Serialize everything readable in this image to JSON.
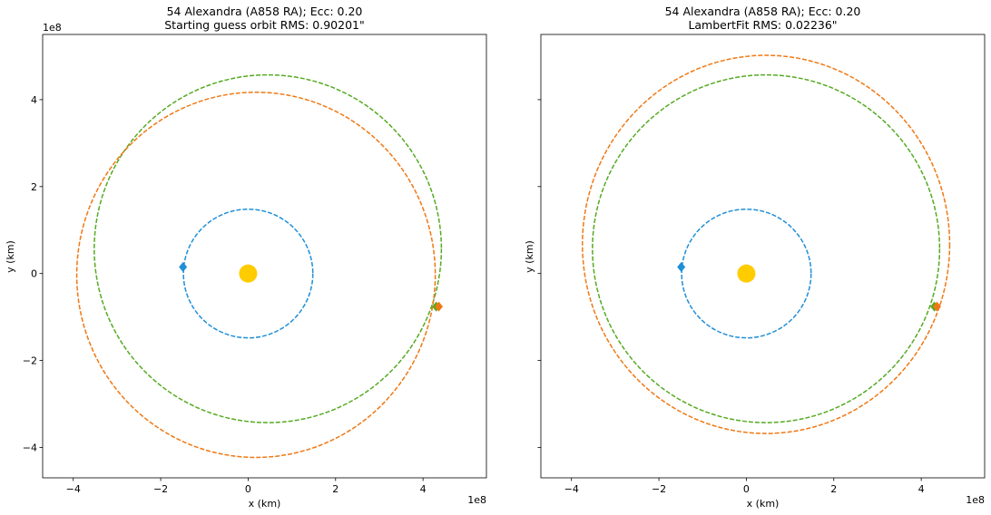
{
  "figure": {
    "background": "#ffffff",
    "colors": {
      "sun": "#FFCC00",
      "earth": "#1F8FD6",
      "fitted": "#F07814",
      "asteroid": "#55AA22"
    }
  },
  "chart_data": [
    {
      "type": "scatter",
      "title": "54 Alexandra (A858 RA); Ecc: 0.20",
      "subtitle": "Starting guess orbit RMS: 0.90201\"",
      "xlabel": "x (km)",
      "ylabel": "y (km)",
      "x_offset_label": "1e8",
      "y_offset_label": "1e8",
      "xlim": [
        -4.7,
        5.45
      ],
      "ylim": [
        -4.7,
        5.5
      ],
      "xticks": [
        -4,
        -2,
        0,
        2,
        4
      ],
      "yticks": [
        -4,
        -2,
        0,
        2,
        4
      ],
      "xtick_labels": [
        "−4",
        "−2",
        "0",
        "2",
        "4"
      ],
      "ytick_labels": [
        "−4",
        "−2",
        "0",
        "2",
        "4"
      ],
      "show_ytick_labels": true,
      "grid": false,
      "series": [
        {
          "kind": "orbit",
          "style": "dashed",
          "color_key": "earth",
          "cx": 0.0,
          "cy": 0.0,
          "rx": 1.48,
          "ry": 1.48
        },
        {
          "kind": "orbit",
          "style": "dashed",
          "color_key": "asteroid",
          "cx": 0.45,
          "cy": 0.57,
          "rx": 3.97,
          "ry": 4.0
        },
        {
          "kind": "orbit",
          "style": "dashed",
          "color_key": "fitted",
          "cx": 0.18,
          "cy": -0.03,
          "rx": 4.1,
          "ry": 4.2
        },
        {
          "kind": "sun",
          "color_key": "sun",
          "x": 0.0,
          "y": 0.0
        },
        {
          "kind": "marker",
          "color_key": "earth",
          "x": -1.49,
          "y": 0.15
        },
        {
          "kind": "marker",
          "color_key": "asteroid",
          "x": 4.3,
          "y": -0.76
        },
        {
          "kind": "marker",
          "color_key": "fitted",
          "x": 4.36,
          "y": -0.76
        }
      ]
    },
    {
      "type": "scatter",
      "title": "54 Alexandra (A858 RA); Ecc: 0.20",
      "subtitle": "LambertFit RMS: 0.02236\"",
      "xlabel": "x (km)",
      "ylabel": "y (km)",
      "x_offset_label": "1e8",
      "y_offset_label": "",
      "xlim": [
        -4.7,
        5.45
      ],
      "ylim": [
        -4.7,
        5.5
      ],
      "xticks": [
        -4,
        -2,
        0,
        2,
        4
      ],
      "yticks": [
        -4,
        -2,
        0,
        2,
        4
      ],
      "xtick_labels": [
        "−4",
        "−2",
        "0",
        "2",
        "4"
      ],
      "ytick_labels": [
        "−4",
        "−2",
        "0",
        "2",
        "4"
      ],
      "show_ytick_labels": false,
      "grid": false,
      "series": [
        {
          "kind": "orbit",
          "style": "dashed",
          "color_key": "earth",
          "cx": 0.0,
          "cy": 0.0,
          "rx": 1.48,
          "ry": 1.48
        },
        {
          "kind": "orbit",
          "style": "dashed",
          "color_key": "asteroid",
          "cx": 0.45,
          "cy": 0.57,
          "rx": 3.97,
          "ry": 4.0
        },
        {
          "kind": "orbit",
          "style": "dashed",
          "color_key": "fitted",
          "cx": 0.45,
          "cy": 0.67,
          "rx": 4.2,
          "ry": 4.35
        },
        {
          "kind": "sun",
          "color_key": "sun",
          "x": 0.0,
          "y": 0.0
        },
        {
          "kind": "marker",
          "color_key": "earth",
          "x": -1.49,
          "y": 0.15
        },
        {
          "kind": "marker",
          "color_key": "asteroid",
          "x": 4.3,
          "y": -0.76
        },
        {
          "kind": "marker",
          "color_key": "fitted",
          "x": 4.36,
          "y": -0.76
        }
      ]
    }
  ]
}
